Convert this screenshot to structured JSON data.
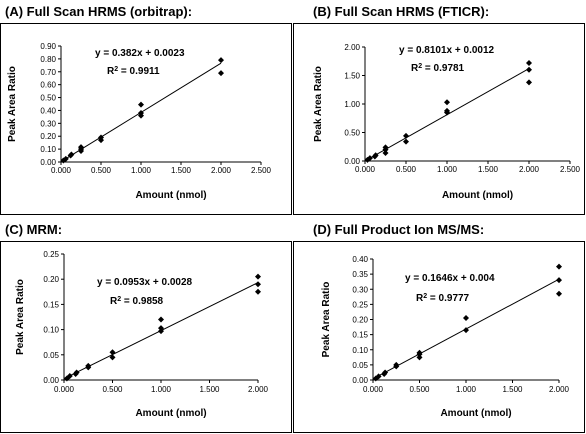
{
  "chart_data": [
    {
      "type": "scatter",
      "title": "(A) Full Scan HRMS (orbitrap):",
      "xlabel": "Amount (nmol)",
      "ylabel": "Peak Area Ratio",
      "xlim": [
        0,
        2.5
      ],
      "ylim": [
        0,
        0.9
      ],
      "x_ticks": [
        "0.000",
        "0.500",
        "1.000",
        "1.500",
        "2.000",
        "2.500"
      ],
      "y_ticks": [
        "0.00",
        "0.10",
        "0.20",
        "0.30",
        "0.40",
        "0.50",
        "0.60",
        "0.70",
        "0.80",
        "0.90"
      ],
      "equation": "y = 0.382x + 0.0023",
      "r2_value": "= 0.9911",
      "fit": {
        "slope": 0.382,
        "intercept": 0.0023,
        "x_range": [
          0.03,
          2.0
        ]
      },
      "points": [
        {
          "x": 0.03,
          "y": 0.012
        },
        {
          "x": 0.06,
          "y": 0.024
        },
        {
          "x": 0.12,
          "y": 0.05
        },
        {
          "x": 0.13,
          "y": 0.058
        },
        {
          "x": 0.25,
          "y": 0.085
        },
        {
          "x": 0.25,
          "y": 0.1
        },
        {
          "x": 0.25,
          "y": 0.115
        },
        {
          "x": 0.5,
          "y": 0.17
        },
        {
          "x": 0.5,
          "y": 0.19
        },
        {
          "x": 1.0,
          "y": 0.36
        },
        {
          "x": 1.0,
          "y": 0.38
        },
        {
          "x": 1.0,
          "y": 0.445
        },
        {
          "x": 2.0,
          "y": 0.69
        },
        {
          "x": 2.0,
          "y": 0.79
        }
      ],
      "grid": false,
      "legend": "none"
    },
    {
      "type": "scatter",
      "title": "(B) Full Scan HRMS (FTICR):",
      "xlabel": "Amount (nmol)",
      "ylabel": "Peak Area Ratio",
      "xlim": [
        0,
        2.5
      ],
      "ylim": [
        0,
        2.0
      ],
      "x_ticks": [
        "0.000",
        "0.500",
        "1.000",
        "1.500",
        "2.000",
        "2.500"
      ],
      "y_ticks": [
        "0.00",
        "0.50",
        "1.00",
        "1.50",
        "2.00"
      ],
      "equation": "y = 0.8101x + 0.0012",
      "r2_value": "= 0.9781",
      "fit": {
        "slope": 0.8101,
        "intercept": 0.0012,
        "x_range": [
          0.03,
          2.0
        ]
      },
      "points": [
        {
          "x": 0.03,
          "y": 0.02
        },
        {
          "x": 0.06,
          "y": 0.05
        },
        {
          "x": 0.12,
          "y": 0.08
        },
        {
          "x": 0.13,
          "y": 0.1
        },
        {
          "x": 0.25,
          "y": 0.14
        },
        {
          "x": 0.25,
          "y": 0.2
        },
        {
          "x": 0.25,
          "y": 0.24
        },
        {
          "x": 0.5,
          "y": 0.34
        },
        {
          "x": 0.5,
          "y": 0.44
        },
        {
          "x": 1.0,
          "y": 0.85
        },
        {
          "x": 1.0,
          "y": 0.88
        },
        {
          "x": 1.0,
          "y": 1.03
        },
        {
          "x": 2.0,
          "y": 1.38
        },
        {
          "x": 2.0,
          "y": 1.6
        },
        {
          "x": 2.0,
          "y": 1.72
        }
      ],
      "grid": false,
      "legend": "none"
    },
    {
      "type": "scatter",
      "title": "(C) MRM:",
      "xlabel": "Amount (nmol)",
      "ylabel": "Peak Area Ratio",
      "xlim": [
        0,
        2.0
      ],
      "ylim": [
        0,
        0.25
      ],
      "x_ticks": [
        "0.000",
        "0.500",
        "1.000",
        "1.500",
        "2.000"
      ],
      "y_ticks": [
        "0.00",
        "0.05",
        "0.10",
        "0.15",
        "0.20",
        "0.25"
      ],
      "equation": "y = 0.0953x + 0.0028",
      "r2_value": "= 0.9858",
      "fit": {
        "slope": 0.0953,
        "intercept": 0.0028,
        "x_range": [
          0.0,
          2.0
        ]
      },
      "points": [
        {
          "x": 0.03,
          "y": 0.003
        },
        {
          "x": 0.06,
          "y": 0.008
        },
        {
          "x": 0.12,
          "y": 0.012
        },
        {
          "x": 0.13,
          "y": 0.015
        },
        {
          "x": 0.25,
          "y": 0.025
        },
        {
          "x": 0.25,
          "y": 0.028
        },
        {
          "x": 0.5,
          "y": 0.045
        },
        {
          "x": 0.5,
          "y": 0.055
        },
        {
          "x": 1.0,
          "y": 0.097
        },
        {
          "x": 1.0,
          "y": 0.103
        },
        {
          "x": 1.0,
          "y": 0.12
        },
        {
          "x": 2.0,
          "y": 0.175
        },
        {
          "x": 2.0,
          "y": 0.19
        },
        {
          "x": 2.0,
          "y": 0.205
        }
      ],
      "grid": false,
      "legend": "none"
    },
    {
      "type": "scatter",
      "title": "(D) Full Product Ion MS/MS:",
      "xlabel": "Amount (nmol)",
      "ylabel": "Peak Area Ratio",
      "xlim": [
        0,
        2.0
      ],
      "ylim": [
        0,
        0.4
      ],
      "x_ticks": [
        "0.000",
        "0.500",
        "1.000",
        "1.500",
        "2.000"
      ],
      "y_ticks": [
        "0.00",
        "0.05",
        "0.10",
        "0.15",
        "0.20",
        "0.25",
        "0.30",
        "0.35",
        "0.40"
      ],
      "equation": "y = 0.1646x + 0.004",
      "r2_value": "= 0.9777",
      "fit": {
        "slope": 0.1646,
        "intercept": 0.004,
        "x_range": [
          0.0,
          2.0
        ]
      },
      "points": [
        {
          "x": 0.03,
          "y": 0.005
        },
        {
          "x": 0.06,
          "y": 0.012
        },
        {
          "x": 0.12,
          "y": 0.02
        },
        {
          "x": 0.13,
          "y": 0.025
        },
        {
          "x": 0.25,
          "y": 0.045
        },
        {
          "x": 0.25,
          "y": 0.05
        },
        {
          "x": 0.5,
          "y": 0.075
        },
        {
          "x": 0.5,
          "y": 0.085
        },
        {
          "x": 0.5,
          "y": 0.09
        },
        {
          "x": 1.0,
          "y": 0.165
        },
        {
          "x": 1.0,
          "y": 0.205
        },
        {
          "x": 2.0,
          "y": 0.285
        },
        {
          "x": 2.0,
          "y": 0.33
        },
        {
          "x": 2.0,
          "y": 0.375
        }
      ],
      "grid": false,
      "legend": "none"
    }
  ]
}
